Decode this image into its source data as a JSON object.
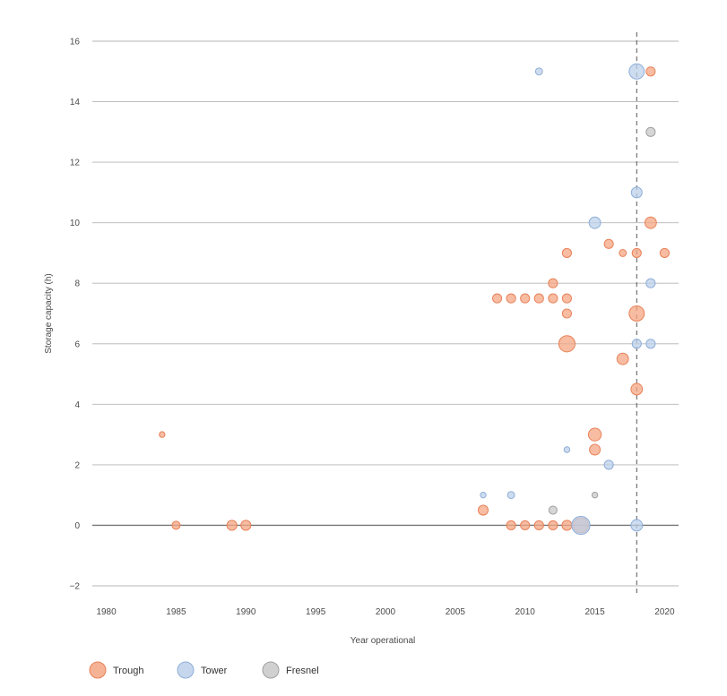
{
  "chart_data": {
    "type": "scatter",
    "title": "",
    "xlabel": "Year operational",
    "ylabel": "Storage capacity (h)",
    "xlim": [
      1979,
      2021
    ],
    "ylim": [
      -2,
      16
    ],
    "x_ticks": [
      1980,
      1985,
      1990,
      1995,
      2000,
      2005,
      2010,
      2015,
      2020
    ],
    "y_ticks": [
      16,
      14,
      12,
      10,
      8,
      6,
      4,
      2,
      0,
      -2
    ],
    "y_tick_labels": [
      "16",
      "14",
      "12",
      "10",
      "8",
      "6",
      "4",
      "2",
      "0",
      "−2"
    ],
    "grid": "horizontal",
    "reference_line": {
      "x": 2018,
      "style": "dashed"
    },
    "legend_position": "bottom-left",
    "series": [
      {
        "name": "Trough",
        "color": "#f4a582",
        "stroke": "#e8825a",
        "points": [
          {
            "x": 1984,
            "y": 3,
            "size": 1
          },
          {
            "x": 1985,
            "y": 0,
            "size": 2
          },
          {
            "x": 1989,
            "y": 0,
            "size": 3
          },
          {
            "x": 1990,
            "y": 0,
            "size": 3
          },
          {
            "x": 2007,
            "y": 0.5,
            "size": 3
          },
          {
            "x": 2008,
            "y": 7.5,
            "size": 2.5
          },
          {
            "x": 2009,
            "y": 7.5,
            "size": 2.5
          },
          {
            "x": 2009,
            "y": 0,
            "size": 2.5
          },
          {
            "x": 2010,
            "y": 7.5,
            "size": 2.5
          },
          {
            "x": 2010,
            "y": 0,
            "size": 2.5
          },
          {
            "x": 2011,
            "y": 7.5,
            "size": 2.5
          },
          {
            "x": 2011,
            "y": 0,
            "size": 2.5
          },
          {
            "x": 2012,
            "y": 8,
            "size": 2.5
          },
          {
            "x": 2012,
            "y": 7.5,
            "size": 2.5
          },
          {
            "x": 2012,
            "y": 0,
            "size": 2.5
          },
          {
            "x": 2013,
            "y": 9,
            "size": 2.5
          },
          {
            "x": 2013,
            "y": 7.5,
            "size": 2.5
          },
          {
            "x": 2013,
            "y": 7,
            "size": 2.5
          },
          {
            "x": 2013,
            "y": 6,
            "size": 8
          },
          {
            "x": 2013,
            "y": 0,
            "size": 3
          },
          {
            "x": 2014,
            "y": 0,
            "size": 7
          },
          {
            "x": 2015,
            "y": 3,
            "size": 5
          },
          {
            "x": 2015,
            "y": 2.5,
            "size": 3.5
          },
          {
            "x": 2016,
            "y": 9.3,
            "size": 2.5
          },
          {
            "x": 2017,
            "y": 9,
            "size": 1.5
          },
          {
            "x": 2017,
            "y": 5.5,
            "size": 4
          },
          {
            "x": 2018,
            "y": 9,
            "size": 2.5
          },
          {
            "x": 2018,
            "y": 7,
            "size": 7
          },
          {
            "x": 2018,
            "y": 4.5,
            "size": 4
          },
          {
            "x": 2019,
            "y": 15,
            "size": 2.5
          },
          {
            "x": 2019,
            "y": 10,
            "size": 4
          },
          {
            "x": 2020,
            "y": 9,
            "size": 2.5
          }
        ]
      },
      {
        "name": "Tower",
        "color": "#bcd0ea",
        "stroke": "#8eaed8",
        "points": [
          {
            "x": 2007,
            "y": 1,
            "size": 1
          },
          {
            "x": 2009,
            "y": 1,
            "size": 1.5
          },
          {
            "x": 2011,
            "y": 15,
            "size": 1.5
          },
          {
            "x": 2013,
            "y": 2.5,
            "size": 1
          },
          {
            "x": 2014,
            "y": 0,
            "size": 10
          },
          {
            "x": 2015,
            "y": 10,
            "size": 4
          },
          {
            "x": 2016,
            "y": 2,
            "size": 2.5
          },
          {
            "x": 2018,
            "y": 15,
            "size": 7
          },
          {
            "x": 2018,
            "y": 11,
            "size": 3.5
          },
          {
            "x": 2018,
            "y": 6,
            "size": 2.5
          },
          {
            "x": 2018,
            "y": 0,
            "size": 4
          },
          {
            "x": 2019,
            "y": 8,
            "size": 2.5
          },
          {
            "x": 2019,
            "y": 6,
            "size": 2.5
          }
        ]
      },
      {
        "name": "Fresnel",
        "color": "#c8c8c8",
        "stroke": "#a0a0a0",
        "points": [
          {
            "x": 2012,
            "y": 0.5,
            "size": 2
          },
          {
            "x": 2015,
            "y": 1,
            "size": 1
          },
          {
            "x": 2019,
            "y": 13,
            "size": 2.5
          }
        ]
      }
    ]
  }
}
